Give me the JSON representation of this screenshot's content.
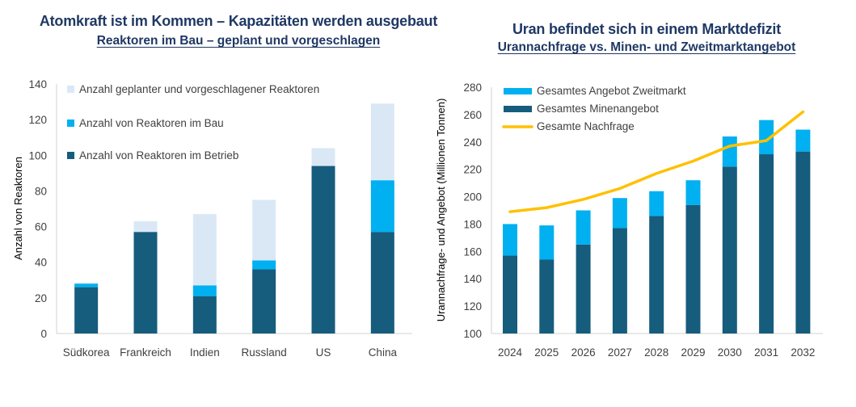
{
  "colors": {
    "title": "#1f3864",
    "operating": "#165c7d",
    "construction": "#00b0f0",
    "planned": "#dae8f6",
    "mine_supply": "#165c7d",
    "secondary_supply": "#00b0f0",
    "demand": "#ffc000",
    "axis": "#d9d9d9",
    "tick_text": "#404040"
  },
  "chart_data": [
    {
      "type": "bar",
      "stacked": true,
      "title": "Atomkraft ist im Kommen – Kapazitäten werden ausgebaut",
      "subtitle": "Reaktoren im Bau – geplant und vorgeschlagen",
      "xlabel": "",
      "ylabel": "Anzahl von Reaktoren",
      "ylim": [
        0,
        140
      ],
      "yticks": [
        0,
        20,
        40,
        60,
        80,
        100,
        120,
        140
      ],
      "grid": false,
      "legend_position": "top-left",
      "categories": [
        "Südkorea",
        "Frankreich",
        "Indien",
        "Russland",
        "US",
        "China"
      ],
      "series": [
        {
          "name": "Anzahl von Reaktoren im Betrieb",
          "color_key": "operating",
          "values": [
            26,
            57,
            21,
            36,
            94,
            57
          ]
        },
        {
          "name": "Anzahl von Reaktoren im Bau",
          "color_key": "construction",
          "values": [
            2,
            0,
            6,
            5,
            0,
            29
          ]
        },
        {
          "name": "Anzahl geplanter und vorgeschlagener Reaktoren",
          "color_key": "planned",
          "values": [
            0.5,
            6,
            40,
            34,
            10,
            43
          ]
        }
      ],
      "legend": [
        {
          "label": "Anzahl geplanter und vorgeschlagener Reaktoren",
          "color_key": "planned"
        },
        {
          "label": "Anzahl von Reaktoren im Bau",
          "color_key": "construction"
        },
        {
          "label": "Anzahl von Reaktoren im Betrieb",
          "color_key": "operating"
        }
      ]
    },
    {
      "type": "bar",
      "stacked": true,
      "title": "Uran befindet sich in einem Marktdefizit",
      "subtitle": "Urannachfrage  vs. Minen- und Zweitmarktangebot",
      "xlabel": "",
      "ylabel": "Urannachfrage- und Angebot (Millionen Tonnen)",
      "ylim": [
        100,
        280
      ],
      "yticks": [
        100,
        120,
        140,
        160,
        180,
        200,
        220,
        240,
        260,
        280
      ],
      "grid": false,
      "legend_position": "top-left",
      "categories": [
        "2024",
        "2025",
        "2026",
        "2027",
        "2028",
        "2029",
        "2030",
        "2031",
        "2032"
      ],
      "series": [
        {
          "name": "Gesamtes Minenangebot",
          "kind": "bar",
          "color_key": "mine_supply",
          "values": [
            157,
            154,
            165,
            177,
            186,
            194,
            222,
            231,
            233
          ]
        },
        {
          "name": "Gesamtes Angebot Zweitmarkt",
          "kind": "bar",
          "color_key": "secondary_supply",
          "values": [
            23,
            25,
            25,
            22,
            18,
            18,
            22,
            25,
            16
          ]
        },
        {
          "name": "Gesamte Nachfrage",
          "kind": "line",
          "color_key": "demand",
          "values": [
            189,
            192,
            198,
            206,
            217,
            226,
            237,
            241,
            262
          ]
        }
      ],
      "legend": [
        {
          "label": "Gesamtes Angebot Zweitmarkt",
          "color_key": "secondary_supply",
          "marker": "rect"
        },
        {
          "label": "Gesamtes Minenangebot",
          "color_key": "mine_supply",
          "marker": "rect"
        },
        {
          "label": "Gesamte Nachfrage",
          "color_key": "demand",
          "marker": "line"
        }
      ]
    }
  ]
}
